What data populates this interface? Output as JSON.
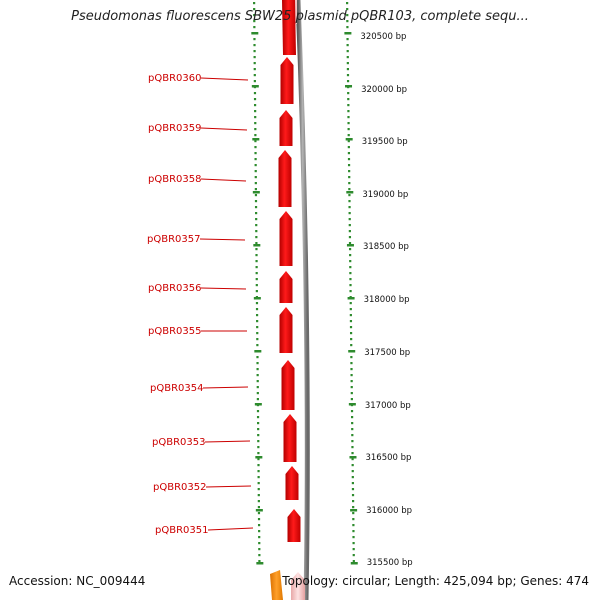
{
  "title": "Pseudomonas fluorescens SBW25 plasmid pQBR103, complete sequ...",
  "footer": {
    "accession": "Accession: NC_009444",
    "topology": "Topology: circular; Length: 425,094 bp; Genes: 474"
  },
  "colors": {
    "gene_forward": "#ff0000",
    "gene_light": "#f7c8c8",
    "gene_other": "#ff8c00",
    "backbone": "#888888",
    "tick": "#2e8b2e",
    "label": "#cc0000"
  },
  "ruler": [
    "320500 bp",
    "320000 bp",
    "319500 bp",
    "319000 bp",
    "318500 bp",
    "318000 bp",
    "317500 bp",
    "317000 bp",
    "316500 bp",
    "316000 bp",
    "315500 bp"
  ],
  "genes": [
    "pQBR0360",
    "pQBR0359",
    "pQBR0358",
    "pQBR0357",
    "pQBR0356",
    "pQBR0355",
    "pQBR0354",
    "pQBR0353",
    "pQBR0352",
    "pQBR0351"
  ]
}
